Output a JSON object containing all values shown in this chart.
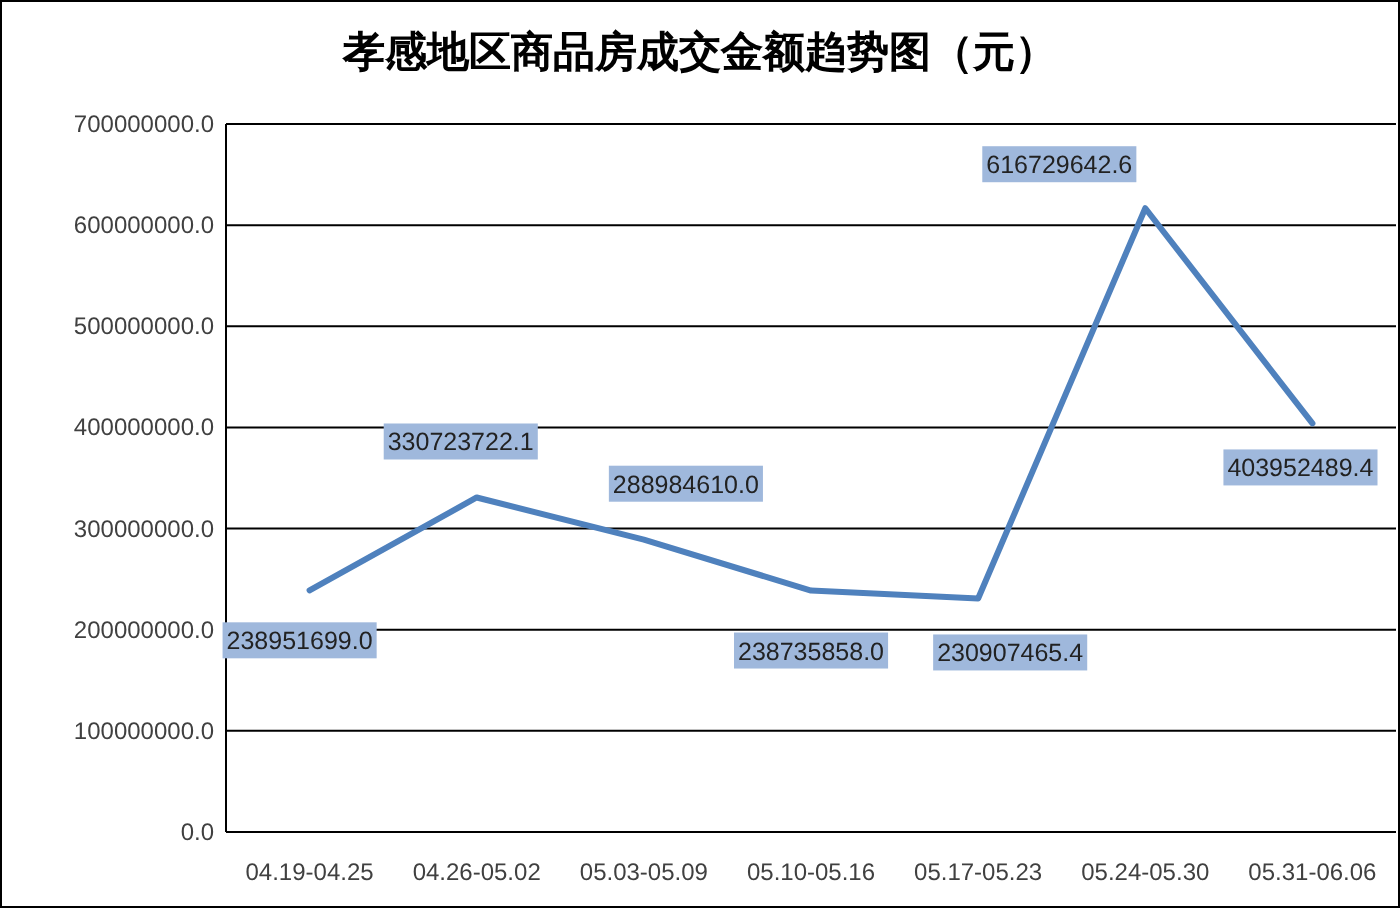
{
  "chart_data": {
    "type": "line",
    "title": "孝感地区商品房成交金额趋势图（元）",
    "categories": [
      "04.19-04.25",
      "04.26-05.02",
      "05.03-05.09",
      "05.10-05.16",
      "05.17-05.23",
      "05.24-05.30",
      "05.31-06.06"
    ],
    "series": [
      {
        "color": "#4f81bd",
        "values": [
          238951699.0,
          330723722.1,
          288984610.0,
          238735858.0,
          230907465.4,
          616729642.6,
          403952489.4
        ],
        "value_labels": [
          "238951699.0",
          "330723722.1",
          "288984610.0",
          "238735858.0",
          "230907465.4",
          "616729642.6",
          "403952489.4"
        ]
      }
    ],
    "ylim": [
      0,
      700000000
    ],
    "yticks": [
      {
        "value": 0,
        "label": "0.0"
      },
      {
        "value": 100000000,
        "label": "100000000.0"
      },
      {
        "value": 200000000,
        "label": "200000000.0"
      },
      {
        "value": 300000000,
        "label": "300000000.0"
      },
      {
        "value": 400000000,
        "label": "400000000.0"
      },
      {
        "value": 500000000,
        "label": "500000000.0"
      },
      {
        "value": 600000000,
        "label": "600000000.0"
      },
      {
        "value": 700000000,
        "label": "700000000.0"
      }
    ],
    "grid": "y",
    "marker": "none",
    "line_style": "solid"
  }
}
